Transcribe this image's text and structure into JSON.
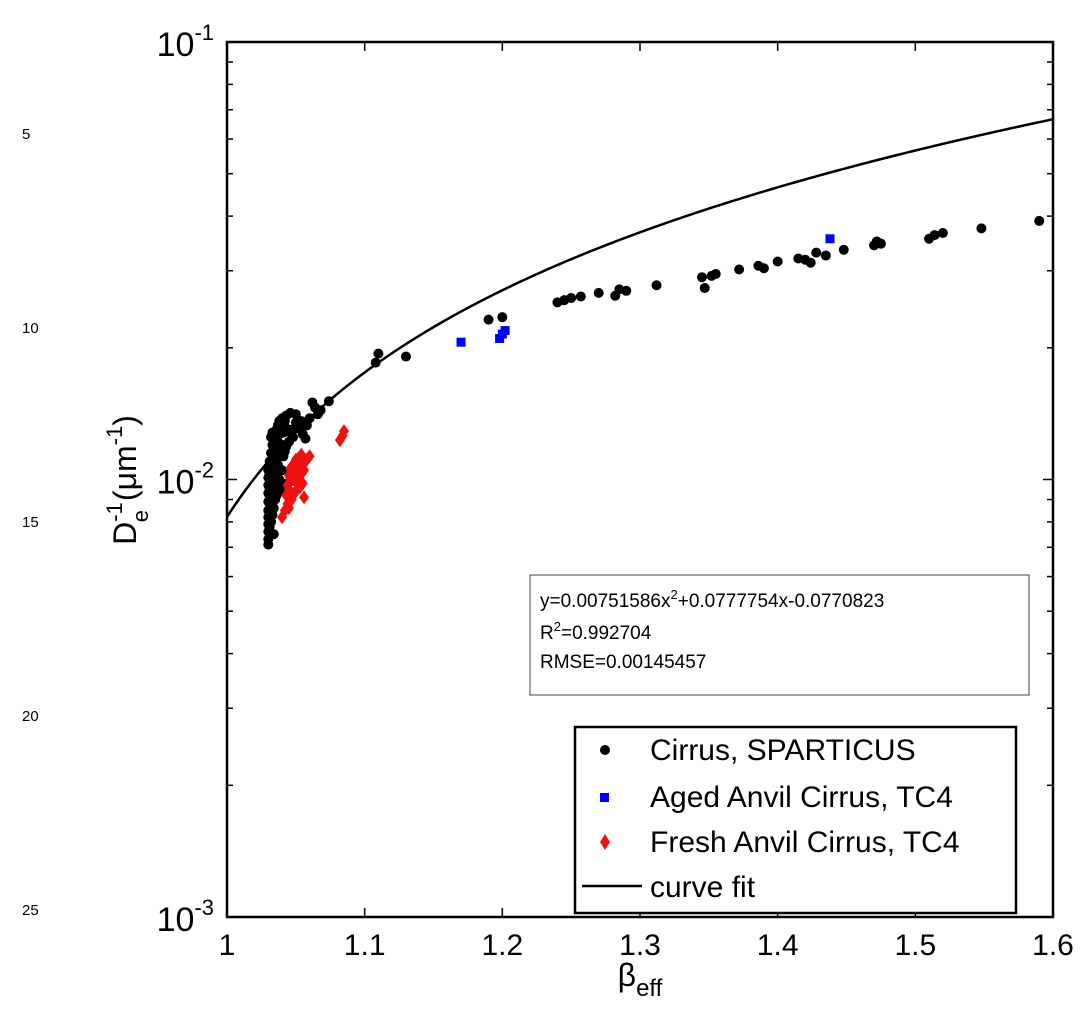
{
  "line_numbers": [
    "5",
    "10",
    "15",
    "20",
    "25"
  ],
  "chart_data": {
    "type": "scatter",
    "xlim": [
      1,
      1.6
    ],
    "ylim": [
      0.001,
      0.1
    ],
    "yscale": "log",
    "xlabel": "β",
    "xlabel_sub": "eff",
    "ylabel_base": "D",
    "ylabel_sub": "e",
    "ylabel_sup": "-1",
    "ylabel_unit_open": " (μm",
    "ylabel_unit_sup": "-1",
    "ylabel_unit_close": ")",
    "x_ticks": [
      "1",
      "1.1",
      "1.2",
      "1.3",
      "1.4",
      "1.5",
      "1.6"
    ],
    "y_ticks": [
      {
        "base": "10",
        "exp": "-3"
      },
      {
        "base": "10",
        "exp": "-2"
      },
      {
        "base": "10",
        "exp": "-1"
      }
    ],
    "grid": false,
    "legend_position": "bottom-right",
    "fit_box": {
      "line1_a": "y=0.00751586x",
      "line1_sup": "2",
      "line1_b": "+0.0777754x-0.0770823",
      "line2_a": "R",
      "line2_sup": "2",
      "line2_b": "=0.992704",
      "line3": "RMSE=0.00145457"
    },
    "series": [
      {
        "name": "Cirrus, SPARTICUS",
        "marker": "circle",
        "color": "#000000",
        "points": [
          [
            1.03,
            0.0071
          ],
          [
            1.03,
            0.0073
          ],
          [
            1.03,
            0.0076
          ],
          [
            1.03,
            0.0079
          ],
          [
            1.03,
            0.0082
          ],
          [
            1.03,
            0.0085
          ],
          [
            1.03,
            0.0089
          ],
          [
            1.03,
            0.0093
          ],
          [
            1.03,
            0.0097
          ],
          [
            1.03,
            0.0101
          ],
          [
            1.03,
            0.0105
          ],
          [
            1.031,
            0.0078
          ],
          [
            1.031,
            0.0088
          ],
          [
            1.031,
            0.0095
          ],
          [
            1.031,
            0.0103
          ],
          [
            1.031,
            0.011
          ],
          [
            1.032,
            0.008
          ],
          [
            1.032,
            0.009
          ],
          [
            1.032,
            0.0098
          ],
          [
            1.032,
            0.0108
          ],
          [
            1.032,
            0.0115
          ],
          [
            1.032,
            0.0125
          ],
          [
            1.033,
            0.0083
          ],
          [
            1.033,
            0.0093
          ],
          [
            1.033,
            0.0102
          ],
          [
            1.033,
            0.0112
          ],
          [
            1.033,
            0.012
          ],
          [
            1.033,
            0.0128
          ],
          [
            1.034,
            0.0075
          ],
          [
            1.034,
            0.0086
          ],
          [
            1.034,
            0.0097
          ],
          [
            1.034,
            0.0106
          ],
          [
            1.034,
            0.0117
          ],
          [
            1.035,
            0.009
          ],
          [
            1.035,
            0.01
          ],
          [
            1.035,
            0.011
          ],
          [
            1.035,
            0.0118
          ],
          [
            1.035,
            0.0126
          ],
          [
            1.036,
            0.0092
          ],
          [
            1.036,
            0.0105
          ],
          [
            1.036,
            0.0115
          ],
          [
            1.036,
            0.013
          ],
          [
            1.037,
            0.0096
          ],
          [
            1.037,
            0.0108
          ],
          [
            1.037,
            0.0122
          ],
          [
            1.037,
            0.0133
          ],
          [
            1.038,
            0.01
          ],
          [
            1.038,
            0.0113
          ],
          [
            1.038,
            0.0127
          ],
          [
            1.038,
            0.0136
          ],
          [
            1.039,
            0.0094
          ],
          [
            1.039,
            0.0118
          ],
          [
            1.039,
            0.013
          ],
          [
            1.04,
            0.0105
          ],
          [
            1.04,
            0.012
          ],
          [
            1.04,
            0.0134
          ],
          [
            1.04,
            0.0138
          ],
          [
            1.041,
            0.0098
          ],
          [
            1.041,
            0.0113
          ],
          [
            1.041,
            0.0128
          ],
          [
            1.042,
            0.0116
          ],
          [
            1.042,
            0.0132
          ],
          [
            1.042,
            0.0136
          ],
          [
            1.043,
            0.0119
          ],
          [
            1.043,
            0.013
          ],
          [
            1.043,
            0.014
          ],
          [
            1.045,
            0.0122
          ],
          [
            1.045,
            0.013
          ],
          [
            1.046,
            0.0128
          ],
          [
            1.046,
            0.0142
          ],
          [
            1.048,
            0.013
          ],
          [
            1.048,
            0.0125
          ],
          [
            1.05,
            0.0135
          ],
          [
            1.05,
            0.0141
          ],
          [
            1.052,
            0.0131
          ],
          [
            1.054,
            0.0136
          ],
          [
            1.055,
            0.0127
          ],
          [
            1.057,
            0.0124
          ],
          [
            1.058,
            0.0133
          ],
          [
            1.06,
            0.0138
          ],
          [
            1.062,
            0.015
          ],
          [
            1.064,
            0.0146
          ],
          [
            1.066,
            0.0141
          ],
          [
            1.068,
            0.0144
          ],
          [
            1.074,
            0.0151
          ],
          [
            1.108,
            0.0185
          ],
          [
            1.11,
            0.0194
          ],
          [
            1.13,
            0.0191
          ],
          [
            1.19,
            0.0232
          ],
          [
            1.2,
            0.0235
          ],
          [
            1.24,
            0.0254
          ],
          [
            1.245,
            0.0257
          ],
          [
            1.25,
            0.026
          ],
          [
            1.257,
            0.0262
          ],
          [
            1.27,
            0.0267
          ],
          [
            1.282,
            0.0263
          ],
          [
            1.285,
            0.0272
          ],
          [
            1.29,
            0.027
          ],
          [
            1.312,
            0.0278
          ],
          [
            1.345,
            0.029
          ],
          [
            1.347,
            0.0274
          ],
          [
            1.352,
            0.0292
          ],
          [
            1.355,
            0.0295
          ],
          [
            1.372,
            0.0302
          ],
          [
            1.386,
            0.0308
          ],
          [
            1.39,
            0.0304
          ],
          [
            1.4,
            0.0315
          ],
          [
            1.415,
            0.032
          ],
          [
            1.42,
            0.0318
          ],
          [
            1.424,
            0.0313
          ],
          [
            1.428,
            0.033
          ],
          [
            1.435,
            0.0325
          ],
          [
            1.448,
            0.0335
          ],
          [
            1.47,
            0.0343
          ],
          [
            1.472,
            0.035
          ],
          [
            1.475,
            0.0346
          ],
          [
            1.51,
            0.0355
          ],
          [
            1.514,
            0.0362
          ],
          [
            1.52,
            0.0366
          ],
          [
            1.548,
            0.0375
          ],
          [
            1.59,
            0.039
          ]
        ]
      },
      {
        "name": "Aged Anvil Cirrus, TC4",
        "marker": "square",
        "color": "#0000ff",
        "points": [
          [
            1.05,
            0.0108
          ],
          [
            1.17,
            0.0206
          ],
          [
            1.198,
            0.021
          ],
          [
            1.2,
            0.0215
          ],
          [
            1.202,
            0.0219
          ],
          [
            1.438,
            0.0355
          ]
        ]
      },
      {
        "name": "Fresh Anvil Cirrus, TC4",
        "marker": "diamond",
        "color": "#ee1111",
        "points": [
          [
            1.04,
            0.0082
          ],
          [
            1.042,
            0.0085
          ],
          [
            1.044,
            0.0088
          ],
          [
            1.043,
            0.0092
          ],
          [
            1.045,
            0.0095
          ],
          [
            1.044,
            0.0097
          ],
          [
            1.046,
            0.0099
          ],
          [
            1.045,
            0.0102
          ],
          [
            1.047,
            0.0104
          ],
          [
            1.046,
            0.0106
          ],
          [
            1.048,
            0.01
          ],
          [
            1.049,
            0.0103
          ],
          [
            1.05,
            0.0105
          ],
          [
            1.048,
            0.0108
          ],
          [
            1.051,
            0.0098
          ],
          [
            1.052,
            0.0101
          ],
          [
            1.053,
            0.0106
          ],
          [
            1.05,
            0.0111
          ],
          [
            1.054,
            0.0103
          ],
          [
            1.055,
            0.0108
          ],
          [
            1.052,
            0.0112
          ],
          [
            1.056,
            0.0105
          ],
          [
            1.057,
            0.011
          ],
          [
            1.054,
            0.0114
          ],
          [
            1.058,
            0.0111
          ],
          [
            1.06,
            0.0113
          ],
          [
            1.047,
            0.009
          ],
          [
            1.049,
            0.0093
          ],
          [
            1.051,
            0.0095
          ],
          [
            1.053,
            0.0096
          ],
          [
            1.045,
            0.0086
          ],
          [
            1.055,
            0.0098
          ],
          [
            1.056,
            0.0091
          ],
          [
            1.082,
            0.0123
          ],
          [
            1.084,
            0.0126
          ],
          [
            1.085,
            0.0129
          ]
        ]
      },
      {
        "name": "curve fit",
        "marker": "line",
        "color": "#000000",
        "coefficients": [
          0.00751586,
          0.0777754,
          -0.0770823
        ],
        "x": [
          1.0,
          1.05,
          1.1,
          1.15,
          1.2,
          1.25,
          1.3,
          1.35,
          1.4,
          1.45,
          1.5,
          1.55,
          1.6
        ]
      }
    ]
  }
}
